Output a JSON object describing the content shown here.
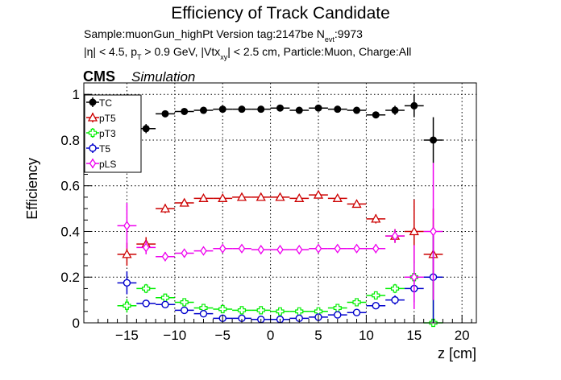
{
  "figure": {
    "title": "Efficiency of Track Candidate",
    "sample_line": {
      "prefix": "Sample:muonGun_highPt   Version tag:2147be  N",
      "sub": "evt",
      "suffix": ":9973"
    },
    "cuts_line": {
      "p1": "|η| < 4.5, p",
      "s1": "T",
      "p2": " > 0.9 GeV, |Vtx",
      "s2": "xy",
      "p3": "| < 2.5 cm, Particle:Muon, Charge:All"
    },
    "cms_label": "CMS",
    "sim_label": "Simulation"
  },
  "chart_data": {
    "type": "scatter",
    "xlabel": "z [cm]",
    "ylabel": "Efficiency",
    "xlim": [
      -19.5,
      21.5
    ],
    "ylim": [
      0,
      1.05
    ],
    "xticks": [
      -15,
      -10,
      -5,
      0,
      5,
      10,
      15,
      20
    ],
    "xtick_labels": [
      "−15",
      "−10",
      "−5",
      "0",
      "5",
      "10",
      "15",
      "20"
    ],
    "yticks": [
      0,
      0.2,
      0.4,
      0.6,
      0.8,
      1
    ],
    "ytick_labels": [
      "0",
      "0.2",
      "0.4",
      "0.6",
      "0.8",
      "1"
    ],
    "grid": true,
    "legend_position": "top-left",
    "x": [
      -15,
      -13,
      -11,
      -9,
      -7,
      -5,
      -3,
      -1,
      1,
      3,
      5,
      7,
      9,
      11,
      13,
      15,
      17
    ],
    "x_halfwidth": 1,
    "series": [
      {
        "name": "TC",
        "color": "#000000",
        "marker": "filled-circle",
        "values": [
          null,
          0.85,
          0.915,
          0.925,
          0.93,
          0.935,
          0.935,
          0.935,
          0.94,
          0.93,
          0.94,
          0.935,
          0.93,
          0.91,
          0.93,
          0.95,
          0.8
        ],
        "errors": [
          null,
          0.02,
          0.012,
          0.01,
          0.008,
          0.008,
          0.008,
          0.008,
          0.008,
          0.008,
          0.008,
          0.008,
          0.01,
          0.012,
          0.02,
          0.05,
          0.1
        ]
      },
      {
        "name": "pT5",
        "color": "#cc0000",
        "marker": "open-triangle",
        "values": [
          0.3,
          0.345,
          0.5,
          0.525,
          0.545,
          0.545,
          0.55,
          0.55,
          0.55,
          0.545,
          0.56,
          0.545,
          0.52,
          0.455,
          0.38,
          0.4,
          0.3
        ],
        "errors": [
          0.05,
          0.03,
          0.02,
          0.015,
          0.012,
          0.01,
          0.01,
          0.01,
          0.01,
          0.01,
          0.01,
          0.012,
          0.015,
          0.02,
          0.03,
          0.14,
          0.2
        ]
      },
      {
        "name": "pT3",
        "color": "#00ee00",
        "marker": "open-cross",
        "values": [
          0.075,
          0.15,
          0.11,
          0.09,
          0.065,
          0.06,
          0.055,
          0.055,
          0.05,
          0.05,
          0.05,
          0.065,
          0.09,
          0.12,
          0.15,
          0.2,
          0.0
        ],
        "errors": [
          0.03,
          0.02,
          0.015,
          0.012,
          0.01,
          0.01,
          0.008,
          0.008,
          0.008,
          0.008,
          0.008,
          0.01,
          0.012,
          0.015,
          0.02,
          0.07,
          0.2
        ]
      },
      {
        "name": "T5",
        "color": "#0000cc",
        "marker": "open-circle",
        "values": [
          0.175,
          0.085,
          0.08,
          0.055,
          0.04,
          0.02,
          0.02,
          0.015,
          0.015,
          0.02,
          0.025,
          0.035,
          0.045,
          0.075,
          0.1,
          0.15,
          0.2
        ],
        "errors": [
          0.05,
          0.015,
          0.012,
          0.01,
          0.008,
          0.006,
          0.006,
          0.005,
          0.005,
          0.006,
          0.006,
          0.008,
          0.01,
          0.012,
          0.02,
          0.06,
          0.2
        ]
      },
      {
        "name": "pLS",
        "color": "#ee00ee",
        "marker": "open-diamond",
        "values": [
          0.425,
          0.33,
          0.29,
          0.305,
          0.315,
          0.325,
          0.325,
          0.32,
          0.32,
          0.32,
          0.325,
          0.325,
          0.325,
          0.325,
          0.38,
          0.2,
          0.4
        ],
        "errors": [
          0.1,
          0.03,
          0.02,
          0.015,
          0.012,
          0.01,
          0.01,
          0.01,
          0.01,
          0.01,
          0.01,
          0.012,
          0.015,
          0.02,
          0.03,
          0.14,
          0.3
        ]
      }
    ]
  }
}
